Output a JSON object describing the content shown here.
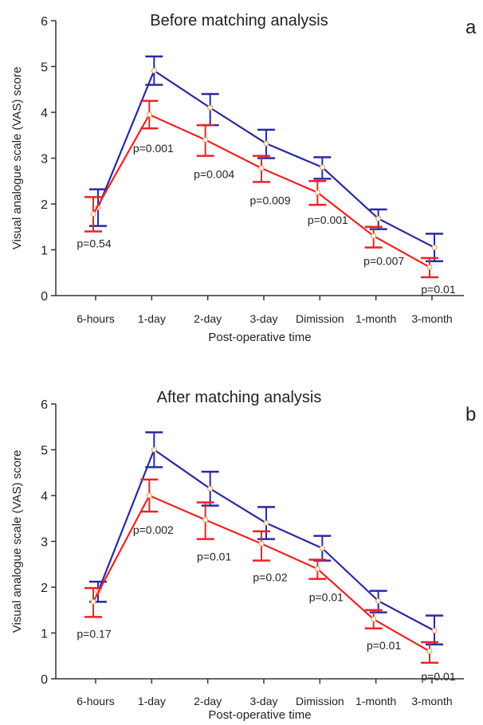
{
  "chart_data": [
    {
      "type": "line",
      "panel_label": "a",
      "title": "Before matching analysis",
      "xlabel": "Post-operative time",
      "ylabel": "Visual analogue scale (VAS) score",
      "ylim": [
        0,
        6
      ],
      "yticks": [
        "0",
        "1",
        "2",
        "3",
        "4",
        "5",
        "6"
      ],
      "categories": [
        "6-hours",
        "1-day",
        "2-day",
        "3-day",
        "Dimission",
        "1-month",
        "3-month"
      ],
      "series": [
        {
          "color": "#2a2aa0",
          "values": [
            1.92,
            4.91,
            4.1,
            3.32,
            2.8,
            1.68,
            1.05
          ],
          "err_low": [
            1.52,
            4.6,
            3.72,
            3.0,
            2.55,
            1.45,
            0.75
          ],
          "err_high": [
            2.32,
            5.22,
            4.4,
            3.62,
            3.02,
            1.88,
            1.35
          ]
        },
        {
          "color": "#ee2222",
          "values": [
            1.78,
            3.95,
            3.4,
            2.78,
            2.25,
            1.3,
            0.62
          ],
          "err_low": [
            1.4,
            3.65,
            3.05,
            2.48,
            1.98,
            1.05,
            0.4
          ],
          "err_high": [
            2.15,
            4.25,
            3.72,
            3.05,
            2.5,
            1.5,
            0.82
          ]
        }
      ],
      "annotations": [
        "p=0.54",
        "p=0.001",
        "p=0.004",
        "p=0.009",
        "p=0.001",
        "p=0.007",
        "p=0.01"
      ],
      "grid": false
    },
    {
      "type": "line",
      "panel_label": "b",
      "title": "After matching analysis",
      "xlabel": "Post-operative time",
      "ylabel": "Visual analogue scale (VAS) score",
      "ylim": [
        0,
        6
      ],
      "yticks": [
        "0",
        "1",
        "2",
        "3",
        "4",
        "5",
        "6"
      ],
      "categories": [
        "6-hours",
        "1-day",
        "2-day",
        "3-day",
        "Dimission",
        "1-month",
        "3-month"
      ],
      "series": [
        {
          "color": "#2a2aa0",
          "values": [
            1.9,
            5.0,
            4.15,
            3.4,
            2.85,
            1.7,
            1.05
          ],
          "err_low": [
            1.68,
            4.62,
            3.78,
            3.05,
            2.58,
            1.45,
            0.75
          ],
          "err_high": [
            2.12,
            5.38,
            4.52,
            3.75,
            3.12,
            1.92,
            1.38
          ]
        },
        {
          "color": "#ee2222",
          "values": [
            1.68,
            4.0,
            3.47,
            2.95,
            2.4,
            1.3,
            0.6
          ],
          "err_low": [
            1.35,
            3.65,
            3.05,
            2.58,
            2.18,
            1.1,
            0.35
          ],
          "err_high": [
            1.98,
            4.35,
            3.85,
            3.22,
            2.6,
            1.5,
            0.8
          ]
        }
      ],
      "annotations": [
        "p=0.17",
        "p=0.002",
        "p=0.01",
        "p=0.02",
        "p=0.01",
        "p=0.01",
        "p=0.01"
      ],
      "grid": false
    }
  ]
}
